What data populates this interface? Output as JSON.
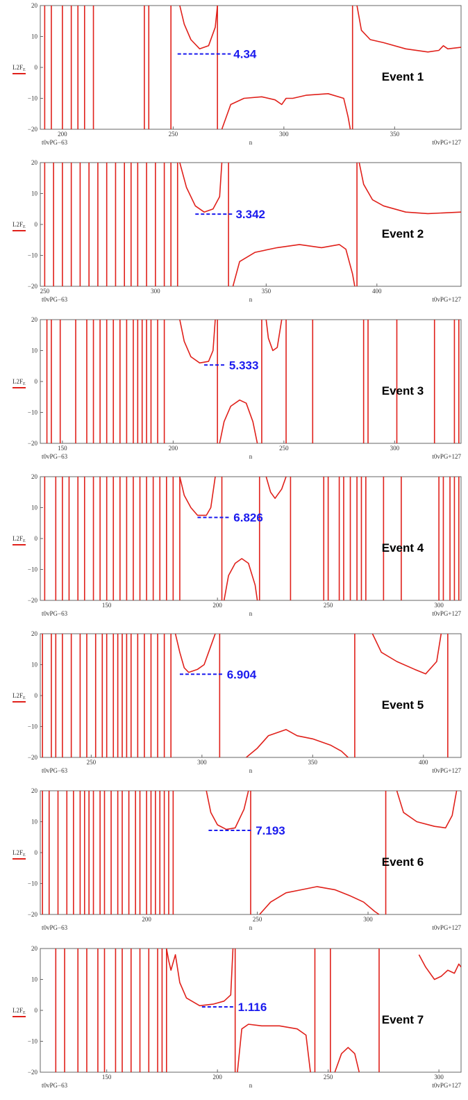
{
  "colors": {
    "trace": "#e0201a",
    "annotation": "#1a1aee",
    "frame": "#666666"
  },
  "chart_data": [
    {
      "type": "line",
      "title": "Event 1",
      "ylabel": "L2F_E",
      "xlabel": "n",
      "x_left_label": "t0vPG−63",
      "x_right_label": "t0vPG+127",
      "xlim": [
        190,
        380
      ],
      "ylim": [
        -20,
        20
      ],
      "xticks": [
        "200",
        "250",
        "300",
        "350"
      ],
      "yticks": [
        "20",
        "10",
        "0",
        "−10",
        "−20"
      ],
      "annotation": {
        "text": "4.34",
        "y": 4.34,
        "x_from": 252,
        "x_to": 276
      },
      "verticals": [
        192,
        195,
        200,
        204,
        207,
        210,
        214,
        237,
        239,
        249,
        270,
        331
      ],
      "segments": [
        [
          [
            253,
            20
          ],
          [
            255,
            14
          ],
          [
            258,
            9
          ],
          [
            262,
            6
          ],
          [
            266,
            7
          ],
          [
            269,
            13
          ],
          [
            270,
            20
          ]
        ],
        [
          [
            272,
            -20
          ],
          [
            276,
            -12
          ],
          [
            282,
            -10
          ],
          [
            290,
            -9.5
          ],
          [
            296,
            -10.5
          ],
          [
            299,
            -12
          ],
          [
            301,
            -10
          ],
          [
            304,
            -10
          ],
          [
            310,
            -9
          ],
          [
            320,
            -8.5
          ],
          [
            327,
            -10
          ],
          [
            329,
            -16
          ],
          [
            330,
            -20
          ]
        ],
        [
          [
            333,
            20
          ],
          [
            335,
            12
          ],
          [
            339,
            9
          ],
          [
            345,
            8
          ],
          [
            355,
            6
          ],
          [
            365,
            5
          ],
          [
            370,
            5.5
          ],
          [
            372,
            7
          ],
          [
            374,
            6
          ],
          [
            380,
            6.5
          ]
        ]
      ]
    },
    {
      "type": "line",
      "title": "Event 2",
      "ylabel": "L2F_E",
      "xlabel": "n",
      "x_left_label": "t0vPG−63",
      "x_right_label": "t0vPG+127",
      "xlim": [
        248,
        438
      ],
      "ylim": [
        -20,
        20
      ],
      "xticks": [
        "250",
        "300",
        "350",
        "400"
      ],
      "yticks": [
        "20",
        "10",
        "0",
        "−10",
        "−20"
      ],
      "annotation": {
        "text": "3.342",
        "y": 3.342,
        "x_from": 318,
        "x_to": 335
      },
      "verticals": [
        250,
        254,
        258,
        262,
        266,
        270,
        274,
        278,
        282,
        286,
        289,
        292,
        296,
        300,
        304,
        307,
        310,
        333,
        391
      ],
      "segments": [
        [
          [
            311,
            20
          ],
          [
            314,
            12
          ],
          [
            318,
            6
          ],
          [
            322,
            4
          ],
          [
            326,
            5
          ],
          [
            329,
            9
          ],
          [
            330,
            20
          ]
        ],
        [
          [
            335,
            -20
          ],
          [
            338,
            -12
          ],
          [
            345,
            -9
          ],
          [
            355,
            -7.5
          ],
          [
            365,
            -6.5
          ],
          [
            375,
            -7.5
          ],
          [
            383,
            -6.5
          ],
          [
            386,
            -8
          ],
          [
            389,
            -16
          ],
          [
            390,
            -20
          ]
        ],
        [
          [
            392,
            20
          ],
          [
            394,
            13
          ],
          [
            398,
            8
          ],
          [
            403,
            6
          ],
          [
            413,
            4
          ],
          [
            423,
            3.5
          ],
          [
            438,
            4
          ]
        ]
      ]
    },
    {
      "type": "line",
      "title": "Event 3",
      "ylabel": "L2F_E",
      "xlabel": "n",
      "x_left_label": "t0vPG−63",
      "x_right_label": "t0vPG+127",
      "xlim": [
        140,
        330
      ],
      "ylim": [
        -20,
        20
      ],
      "xticks": [
        "150",
        "200",
        "250",
        "300"
      ],
      "yticks": [
        "20",
        "10",
        "0",
        "−10",
        "−20"
      ],
      "annotation": {
        "text": "5.333",
        "y": 5.333,
        "x_from": 214,
        "x_to": 224
      },
      "verticals": [
        143,
        145,
        149,
        156,
        161,
        164,
        167,
        170,
        173,
        176,
        179,
        182,
        184,
        186,
        188,
        190,
        193,
        196,
        220,
        240,
        251,
        263,
        286,
        288,
        301,
        318,
        327,
        329
      ],
      "segments": [
        [
          [
            203,
            20
          ],
          [
            205,
            13
          ],
          [
            208,
            8
          ],
          [
            212,
            6
          ],
          [
            216,
            6.5
          ],
          [
            218,
            10
          ],
          [
            219,
            20
          ]
        ],
        [
          [
            221,
            -20
          ],
          [
            223,
            -13
          ],
          [
            226,
            -8
          ],
          [
            230,
            -6
          ],
          [
            233,
            -7
          ],
          [
            236,
            -13
          ],
          [
            238,
            -20
          ]
        ],
        [
          [
            242,
            20
          ],
          [
            243,
            14
          ],
          [
            245,
            10
          ],
          [
            247,
            11
          ],
          [
            249,
            20
          ]
        ]
      ]
    },
    {
      "type": "line",
      "title": "Event 4",
      "ylabel": "L2F_E",
      "xlabel": "n",
      "x_left_label": "t0vPG−63",
      "x_right_label": "t0vPG+127",
      "xlim": [
        120,
        310
      ],
      "ylim": [
        -20,
        20
      ],
      "xticks": [
        "150",
        "200",
        "250",
        "300"
      ],
      "yticks": [
        "20",
        "10",
        "0",
        "−10",
        "−20"
      ],
      "annotation": {
        "text": "6.826",
        "y": 6.826,
        "x_from": 191,
        "x_to": 206
      },
      "verticals": [
        122,
        127,
        130,
        133,
        137,
        140,
        144,
        147,
        150,
        153,
        156,
        159,
        162,
        165,
        168,
        171,
        174,
        177,
        180,
        183,
        202,
        219,
        233,
        248,
        250,
        255,
        257,
        260,
        263,
        265,
        267,
        275,
        283,
        300,
        302,
        305,
        307,
        309
      ],
      "segments": [
        [
          [
            183,
            20
          ],
          [
            185,
            14
          ],
          [
            188,
            10
          ],
          [
            191,
            7.5
          ],
          [
            195,
            7.5
          ],
          [
            197,
            10
          ],
          [
            199,
            20
          ]
        ],
        [
          [
            203,
            -20
          ],
          [
            205,
            -12
          ],
          [
            208,
            -8
          ],
          [
            211,
            -6.5
          ],
          [
            214,
            -8
          ],
          [
            217,
            -15
          ],
          [
            218,
            -20
          ]
        ],
        [
          [
            222,
            20
          ],
          [
            224,
            15
          ],
          [
            226,
            13
          ],
          [
            229,
            16
          ],
          [
            231,
            20
          ]
        ]
      ]
    },
    {
      "type": "line",
      "title": "Event 5",
      "ylabel": "L2F_E",
      "xlabel": "n",
      "x_left_label": "t0vPG−63",
      "x_right_label": "t0vPG+127",
      "xlim": [
        227,
        417
      ],
      "ylim": [
        -20,
        20
      ],
      "xticks": [
        "250",
        "300",
        "350",
        "400"
      ],
      "yticks": [
        "20",
        "10",
        "0",
        "−10",
        "−20"
      ],
      "annotation": {
        "text": "6.904",
        "y": 6.904,
        "x_from": 290,
        "x_to": 310
      },
      "verticals": [
        228,
        232,
        234,
        237,
        241,
        245,
        248,
        252,
        255,
        257,
        260,
        262,
        264,
        266,
        268,
        271,
        274,
        277,
        280,
        283,
        286,
        308,
        369,
        411
      ],
      "segments": [
        [
          [
            288,
            20
          ],
          [
            290,
            14
          ],
          [
            292,
            9
          ],
          [
            294,
            7.5
          ],
          [
            298,
            8.5
          ],
          [
            301,
            10
          ],
          [
            304,
            16
          ],
          [
            306,
            20
          ]
        ],
        [
          [
            320,
            -20
          ],
          [
            325,
            -17
          ],
          [
            330,
            -13
          ],
          [
            338,
            -11
          ],
          [
            343,
            -13
          ],
          [
            350,
            -14
          ],
          [
            358,
            -16
          ],
          [
            363,
            -18
          ],
          [
            366,
            -20
          ]
        ],
        [
          [
            377,
            20
          ],
          [
            381,
            14
          ],
          [
            388,
            11
          ],
          [
            396,
            8.5
          ],
          [
            401,
            7
          ],
          [
            406,
            11
          ],
          [
            408,
            20
          ]
        ]
      ]
    },
    {
      "type": "line",
      "title": "Event 6",
      "ylabel": "L2F_E",
      "xlabel": "n",
      "x_left_label": "t0vPG−63",
      "x_right_label": "t0vPG+127",
      "xlim": [
        152,
        342
      ],
      "ylim": [
        -20,
        20
      ],
      "xticks": [
        "200",
        "250",
        "300"
      ],
      "yticks": [
        "20",
        "10",
        "0",
        "−10",
        "−20"
      ],
      "annotation": {
        "text": "7.193",
        "y": 7.193,
        "x_from": 228,
        "x_to": 248
      },
      "verticals": [
        153,
        156,
        160,
        164,
        167,
        170,
        172,
        174,
        176,
        179,
        181,
        184,
        187,
        189,
        192,
        195,
        197,
        200,
        202,
        204,
        206,
        208,
        210,
        212,
        247,
        308
      ],
      "segments": [
        [
          [
            227,
            20
          ],
          [
            229,
            13
          ],
          [
            232,
            9
          ],
          [
            236,
            7.5
          ],
          [
            240,
            8
          ],
          [
            244,
            14
          ],
          [
            246,
            20
          ]
        ],
        [
          [
            251,
            -20
          ],
          [
            256,
            -16
          ],
          [
            263,
            -13
          ],
          [
            270,
            -12
          ],
          [
            277,
            -11
          ],
          [
            285,
            -12
          ],
          [
            292,
            -14
          ],
          [
            298,
            -16
          ],
          [
            303,
            -19
          ],
          [
            305,
            -20
          ]
        ],
        [
          [
            313,
            20
          ],
          [
            316,
            13
          ],
          [
            322,
            10
          ],
          [
            330,
            8.5
          ],
          [
            335,
            8
          ],
          [
            338,
            12
          ],
          [
            340,
            20
          ]
        ]
      ]
    },
    {
      "type": "line",
      "title": "Event 7",
      "ylabel": "L2F_E",
      "xlabel": "n",
      "x_left_label": "t0vPG−63",
      "x_right_label": "t0vPG+127",
      "xlim": [
        120,
        310
      ],
      "ylim": [
        -20,
        20
      ],
      "xticks": [
        "150",
        "200",
        "250",
        "300"
      ],
      "yticks": [
        "20",
        "10",
        "0",
        "−10",
        "−20"
      ],
      "annotation": {
        "text": "1.116",
        "y": 1.116,
        "x_from": 193,
        "x_to": 208
      },
      "verticals": [
        127,
        131,
        137,
        141,
        146,
        149,
        154,
        157,
        161,
        165,
        169,
        173,
        175,
        177,
        208,
        244,
        251,
        273
      ],
      "segments": [
        [
          [
            177,
            20
          ],
          [
            178,
            16
          ],
          [
            179,
            13
          ],
          [
            181,
            18
          ],
          [
            183,
            9
          ],
          [
            186,
            4
          ],
          [
            192,
            1.5
          ],
          [
            198,
            2
          ],
          [
            203,
            3
          ],
          [
            206,
            5
          ],
          [
            207,
            20
          ]
        ],
        [
          [
            209,
            -20
          ],
          [
            211,
            -6
          ],
          [
            214,
            -4.5
          ],
          [
            220,
            -5
          ],
          [
            228,
            -5
          ],
          [
            236,
            -6
          ],
          [
            240,
            -8
          ],
          [
            242,
            -20
          ]
        ],
        [
          [
            253,
            -20
          ],
          [
            256,
            -14
          ],
          [
            259,
            -12
          ],
          [
            262,
            -14
          ],
          [
            264,
            -20
          ]
        ],
        [
          [
            291,
            18
          ],
          [
            294,
            14
          ],
          [
            298,
            10
          ],
          [
            301,
            11
          ],
          [
            304,
            13
          ],
          [
            307,
            12
          ],
          [
            309,
            15
          ],
          [
            310,
            14
          ]
        ]
      ]
    }
  ]
}
